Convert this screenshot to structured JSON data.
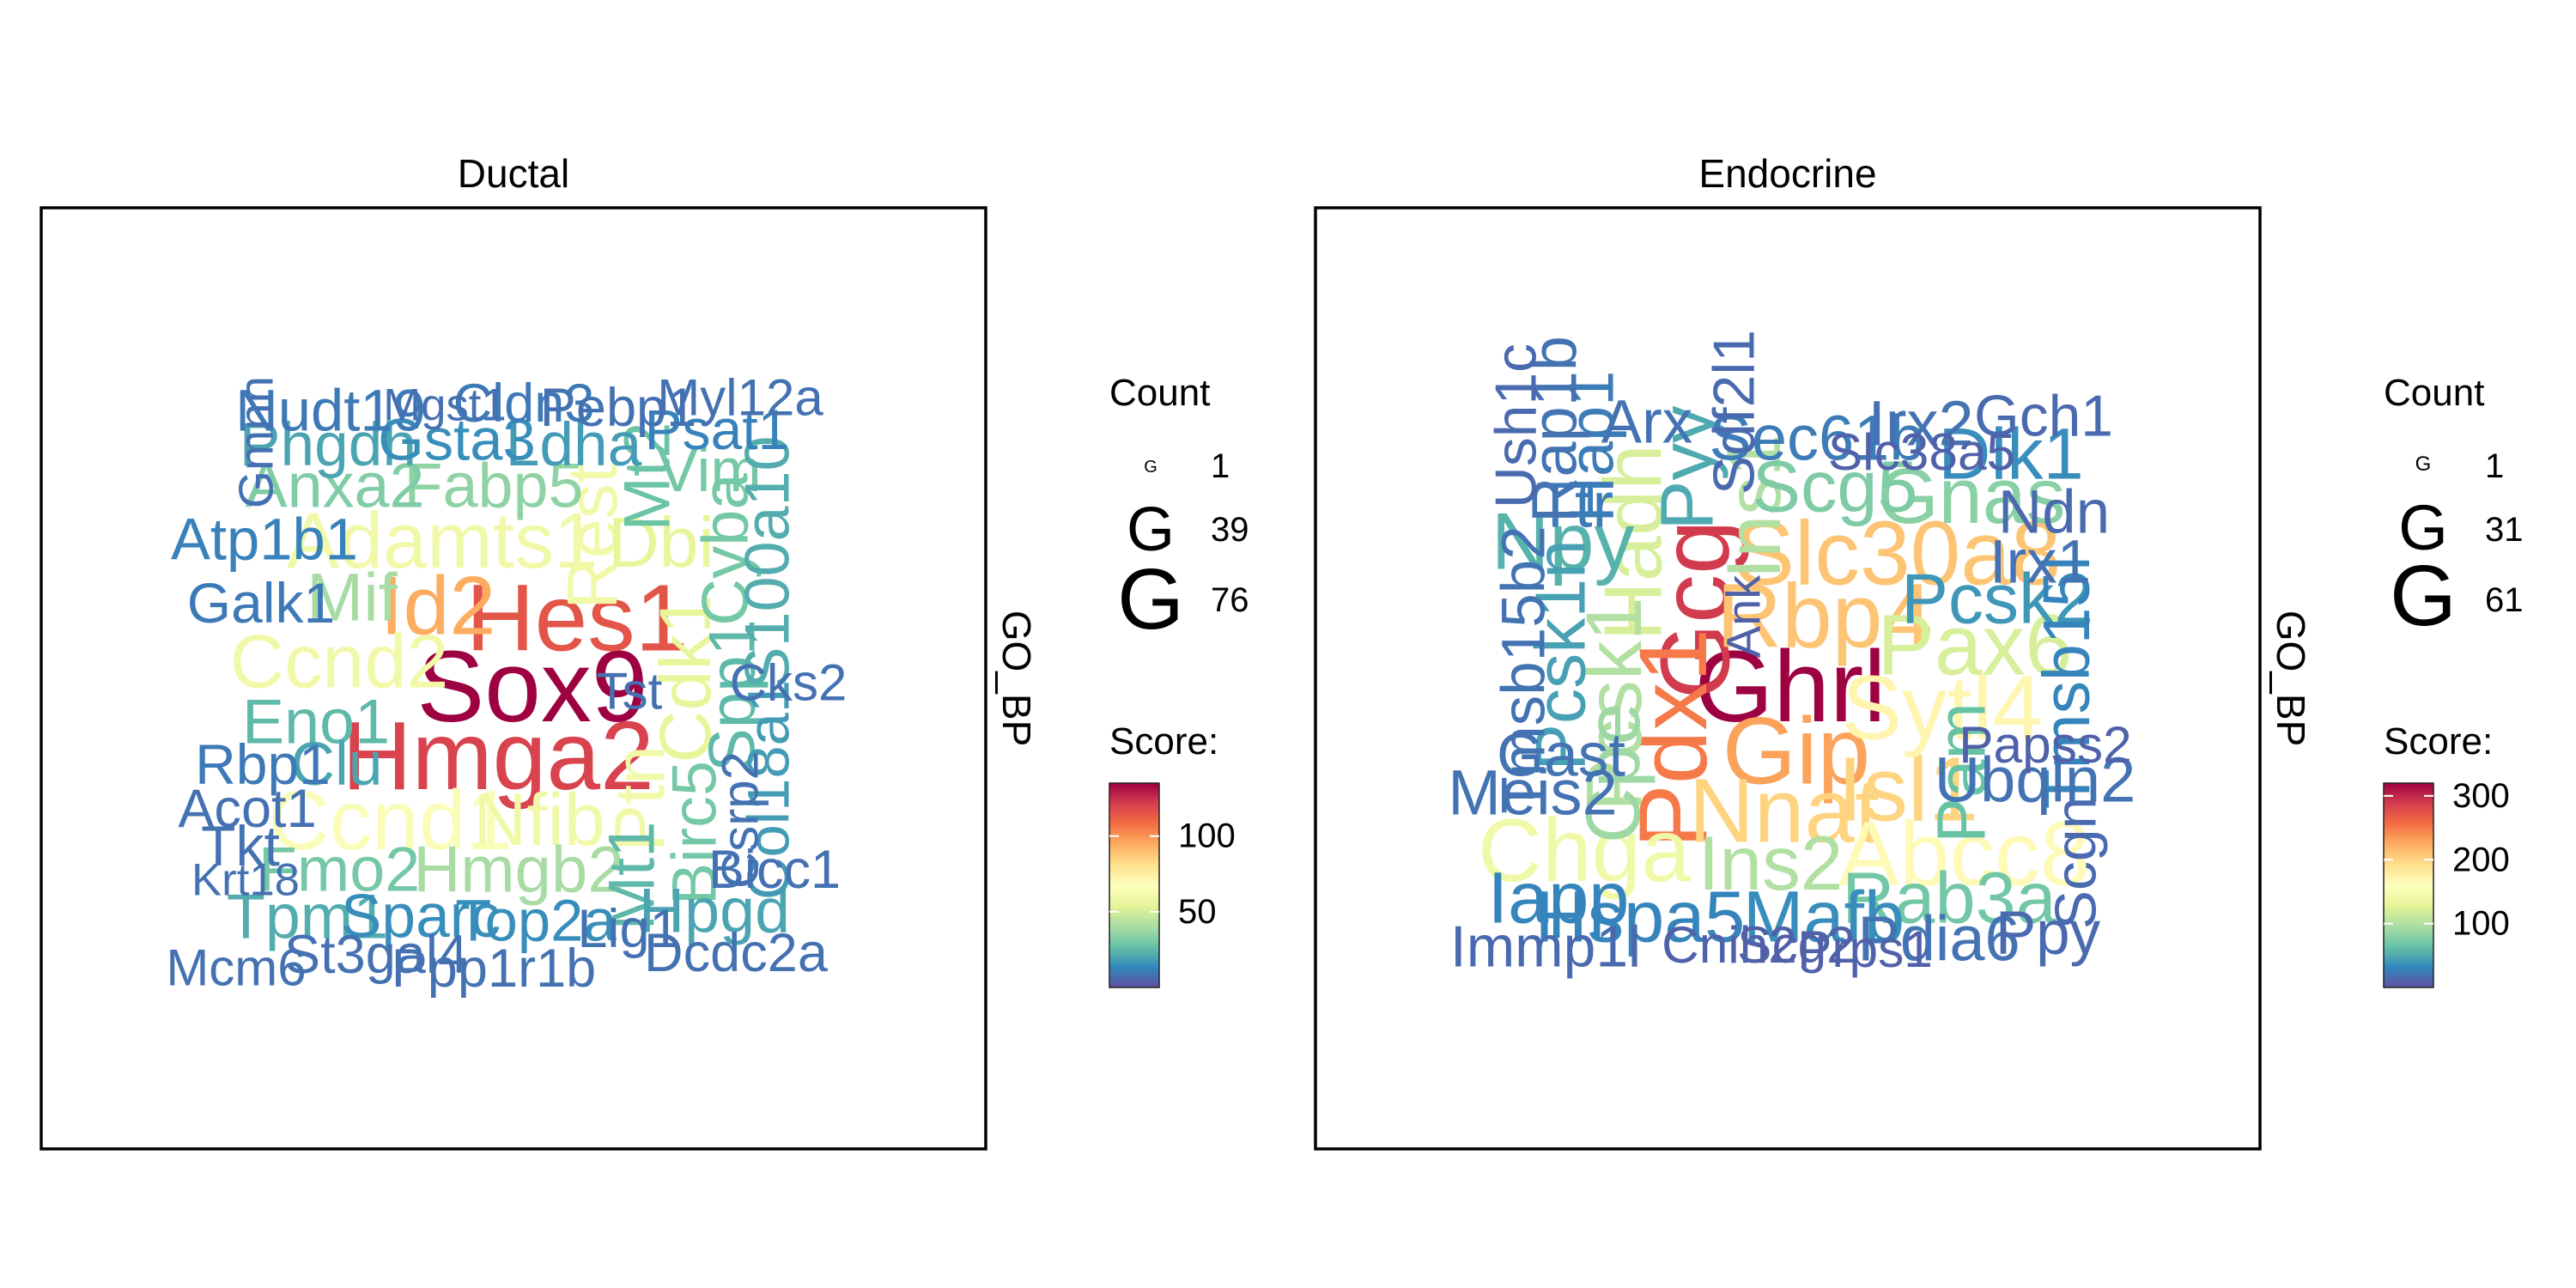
{
  "chart_data": [
    {
      "type": "wordcloud",
      "title": "Ductal",
      "strip_label": "GO_BP",
      "legend": {
        "count_title": "Count",
        "count_glyph": "G",
        "count_breaks": [
          1,
          39,
          76
        ],
        "count_range": [
          1,
          76
        ],
        "score_title": "Score:",
        "score_ticks": [
          50,
          100
        ],
        "score_range": [
          0,
          135
        ]
      },
      "words": [
        {
          "text": "Sox9",
          "score": 135,
          "count": 76
        },
        {
          "text": "Hmga2",
          "score": 120,
          "count": 68
        },
        {
          "text": "Hes1",
          "score": 115,
          "count": 65
        },
        {
          "text": "Id2",
          "score": 95,
          "count": 46
        },
        {
          "text": "Ccnd1",
          "score": 65,
          "count": 48
        },
        {
          "text": "Adamts1",
          "score": 60,
          "count": 40
        },
        {
          "text": "Ccnd2",
          "score": 60,
          "count": 36
        },
        {
          "text": "Nfib",
          "score": 60,
          "count": 34
        },
        {
          "text": "Ptn",
          "score": 60,
          "count": 30
        },
        {
          "text": "Rest",
          "score": 60,
          "count": 30
        },
        {
          "text": "Dbi",
          "score": 55,
          "count": 30
        },
        {
          "text": "Cdk1",
          "score": 55,
          "count": 32
        },
        {
          "text": "Mif",
          "score": 40,
          "count": 27
        },
        {
          "text": "Hmgb2",
          "score": 40,
          "count": 24
        },
        {
          "text": "Fabp5",
          "score": 35,
          "count": 22
        },
        {
          "text": "Anxa2",
          "score": 32,
          "count": 22
        },
        {
          "text": "Vim",
          "score": 30,
          "count": 20
        },
        {
          "text": "Birc5",
          "score": 30,
          "count": 22
        },
        {
          "text": "Fmo2",
          "score": 30,
          "count": 22
        },
        {
          "text": "Cyba",
          "score": 30,
          "count": 24
        },
        {
          "text": "Mt2",
          "score": 28,
          "count": 24
        },
        {
          "text": "Mt1",
          "score": 25,
          "count": 24
        },
        {
          "text": "Spp1",
          "score": 25,
          "count": 24
        },
        {
          "text": "Eno1",
          "score": 25,
          "count": 22
        },
        {
          "text": "Tpm1",
          "score": 22,
          "count": 22
        },
        {
          "text": "S100a10",
          "score": 22,
          "count": 22
        },
        {
          "text": "Hpgd",
          "score": 20,
          "count": 22
        },
        {
          "text": "Phgdh",
          "score": 20,
          "count": 20
        },
        {
          "text": "Clu",
          "score": 20,
          "count": 20
        },
        {
          "text": "Col18a1",
          "score": 18,
          "count": 18
        },
        {
          "text": "Ldha",
          "score": 18,
          "count": 20
        },
        {
          "text": "Gsta3",
          "score": 15,
          "count": 18
        },
        {
          "text": "Sparc",
          "score": 15,
          "count": 20
        },
        {
          "text": "Top2a",
          "score": 15,
          "count": 18
        },
        {
          "text": "Atp1b1",
          "score": 12,
          "count": 18
        },
        {
          "text": "Psat1",
          "score": 12,
          "count": 16
        },
        {
          "text": "Nudt19",
          "score": 10,
          "count": 18
        },
        {
          "text": "Rbp1",
          "score": 10,
          "count": 16
        },
        {
          "text": "Galk1",
          "score": 10,
          "count": 16
        },
        {
          "text": "Cldn3",
          "score": 10,
          "count": 14
        },
        {
          "text": "Pebp1",
          "score": 8,
          "count": 14
        },
        {
          "text": "Myl12a",
          "score": 8,
          "count": 12
        },
        {
          "text": "Acot1",
          "score": 8,
          "count": 14
        },
        {
          "text": "Tkt",
          "score": 8,
          "count": 16
        },
        {
          "text": "Lig1",
          "score": 8,
          "count": 14
        },
        {
          "text": "Dcdc2a",
          "score": 8,
          "count": 14
        },
        {
          "text": "Bicc1",
          "score": 8,
          "count": 14
        },
        {
          "text": "Tst",
          "score": 8,
          "count": 12
        },
        {
          "text": "Cks2",
          "score": 8,
          "count": 12
        },
        {
          "text": "Csrp2",
          "score": 8,
          "count": 12
        },
        {
          "text": "St3gal4",
          "score": 8,
          "count": 14
        },
        {
          "text": "Ppp1r1b",
          "score": 8,
          "count": 14
        },
        {
          "text": "Mcm6",
          "score": 8,
          "count": 12
        },
        {
          "text": "Gmnn",
          "score": 8,
          "count": 10
        },
        {
          "text": "Mgst1",
          "score": 8,
          "count": 8
        },
        {
          "text": "Krt18",
          "score": 8,
          "count": 8
        }
      ]
    },
    {
      "type": "wordcloud",
      "title": "Endocrine",
      "strip_label": "GO_BP",
      "legend": {
        "count_title": "Count",
        "count_glyph": "G",
        "count_breaks": [
          1,
          31,
          61
        ],
        "count_range": [
          1,
          61
        ],
        "score_title": "Score:",
        "score_ticks": [
          100,
          200,
          300
        ],
        "score_range": [
          0,
          320
        ]
      },
      "words": [
        {
          "text": "Ghrl",
          "score": 320,
          "count": 61
        },
        {
          "text": "Gcg",
          "score": 290,
          "count": 56
        },
        {
          "text": "Pdx1",
          "score": 250,
          "count": 54
        },
        {
          "text": "Gip",
          "score": 230,
          "count": 52
        },
        {
          "text": "Slc30a8",
          "score": 210,
          "count": 46
        },
        {
          "text": "Rbp4",
          "score": 210,
          "count": 46
        },
        {
          "text": "Nnat",
          "score": 200,
          "count": 46
        },
        {
          "text": "Isl1",
          "score": 200,
          "count": 46
        },
        {
          "text": "Sytl4",
          "score": 170,
          "count": 46
        },
        {
          "text": "Abcc8",
          "score": 165,
          "count": 46
        },
        {
          "text": "Chga",
          "score": 140,
          "count": 44
        },
        {
          "text": "Pax6",
          "score": 120,
          "count": 40
        },
        {
          "text": "Hadh",
          "score": 120,
          "count": 36
        },
        {
          "text": "Ins1",
          "score": 100,
          "count": 30
        },
        {
          "text": "Ins2",
          "score": 100,
          "count": 30
        },
        {
          "text": "Pcsk1",
          "score": 100,
          "count": 32
        },
        {
          "text": "Cpe",
          "score": 90,
          "count": 30
        },
        {
          "text": "Gnas",
          "score": 80,
          "count": 32
        },
        {
          "text": "Scg5",
          "score": 75,
          "count": 26
        },
        {
          "text": "Rab3a",
          "score": 70,
          "count": 26
        },
        {
          "text": "Pam",
          "score": 65,
          "count": 22
        },
        {
          "text": "Npy",
          "score": 55,
          "count": 34
        },
        {
          "text": "Pyy",
          "score": 50,
          "count": 28
        },
        {
          "text": "Pcsk1n",
          "score": 45,
          "count": 24
        },
        {
          "text": "Pcsk2",
          "score": 40,
          "count": 24
        },
        {
          "text": "Dlk1",
          "score": 35,
          "count": 26
        },
        {
          "text": "Mafb",
          "score": 35,
          "count": 26
        },
        {
          "text": "Hspa5",
          "score": 30,
          "count": 26
        },
        {
          "text": "Iapp",
          "score": 30,
          "count": 26
        },
        {
          "text": "Tmsb15l",
          "score": 30,
          "count": 20
        },
        {
          "text": "Sec61b",
          "score": 25,
          "count": 18
        },
        {
          "text": "Ttr",
          "score": 25,
          "count": 18
        },
        {
          "text": "Hap1",
          "score": 25,
          "count": 18
        },
        {
          "text": "Rap1b",
          "score": 20,
          "count": 18
        },
        {
          "text": "Irx2",
          "score": 20,
          "count": 18
        },
        {
          "text": "Irx1",
          "score": 20,
          "count": 16
        },
        {
          "text": "Gast",
          "score": 20,
          "count": 16
        },
        {
          "text": "Meis2",
          "score": 20,
          "count": 18
        },
        {
          "text": "Ubqln2",
          "score": 20,
          "count": 18
        },
        {
          "text": "Pdia6",
          "score": 20,
          "count": 18
        },
        {
          "text": "Tmsb15b2",
          "score": 20,
          "count": 16
        },
        {
          "text": "Arx",
          "score": 20,
          "count": 16
        },
        {
          "text": "Ush1c",
          "score": 15,
          "count": 14
        },
        {
          "text": "Sdf2l1",
          "score": 15,
          "count": 14
        },
        {
          "text": "Gch1",
          "score": 15,
          "count": 14
        },
        {
          "text": "Ndn",
          "score": 15,
          "count": 16
        },
        {
          "text": "Scgn",
          "score": 15,
          "count": 14
        },
        {
          "text": "Ppy",
          "score": 15,
          "count": 16
        },
        {
          "text": "Immp1l",
          "score": 15,
          "count": 14
        },
        {
          "text": "Cnih2",
          "score": 10,
          "count": 10
        },
        {
          "text": "Scg2",
          "score": 10,
          "count": 10
        },
        {
          "text": "Prps1",
          "score": 10,
          "count": 10
        },
        {
          "text": "Papss2",
          "score": 10,
          "count": 10
        },
        {
          "text": "Slc38a5",
          "score": 10,
          "count": 10
        },
        {
          "text": "Ank",
          "score": 10,
          "count": 8
        }
      ]
    }
  ]
}
